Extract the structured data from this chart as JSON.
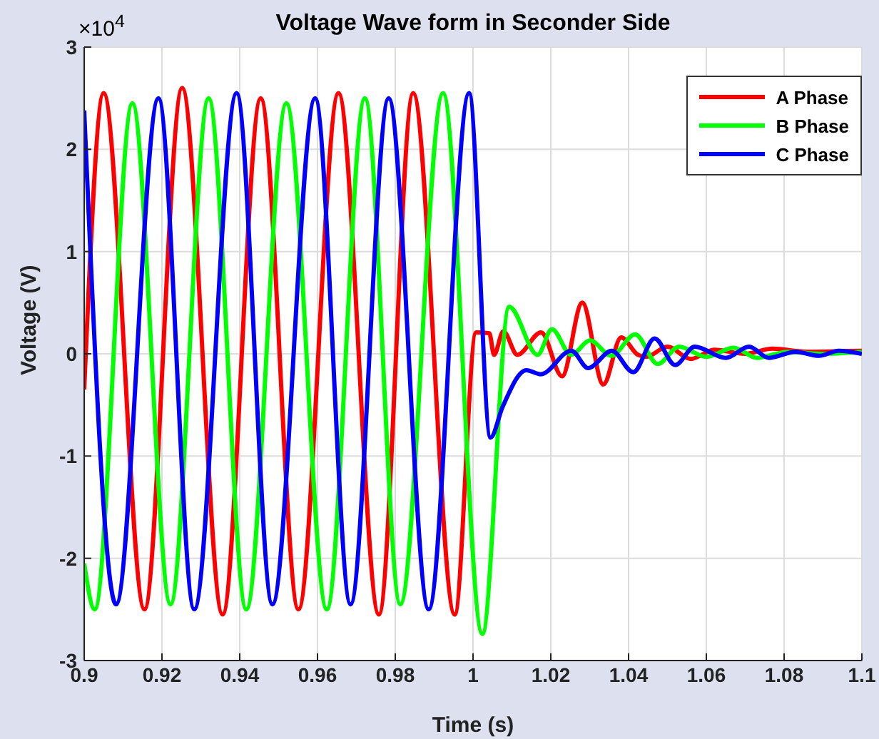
{
  "chart_data": {
    "type": "line",
    "title": "Voltage Wave form in Seconder Side",
    "xlabel": "Time (s)",
    "ylabel": "Voltage (V)",
    "annotations": [
      "×10$^{4}$"
    ],
    "xlim": [
      0.9,
      1.1
    ],
    "xticks": [
      0.9,
      0.92,
      0.94,
      0.96,
      0.98,
      1,
      1.02,
      1.04,
      1.06,
      1.08,
      1.1
    ],
    "ylim": [
      -3,
      3
    ],
    "yticks": [
      -3,
      -2,
      -1,
      0,
      1,
      2,
      3
    ],
    "grid": true,
    "legend": "top right",
    "marker": "none",
    "line_style": "solid",
    "series": [
      {
        "name": "A Phase",
        "color": "#ff0000",
        "x": [
          0.9,
          0.905,
          0.9155,
          0.9252,
          0.9356,
          0.9454,
          0.9551,
          0.9654,
          0.9758,
          0.9846,
          0.9953,
          1.0008,
          1.0042,
          1.0054,
          1.0078,
          1.0114,
          1.0175,
          1.0229,
          1.0281,
          1.0335,
          1.0381,
          1.0424,
          1.0445,
          1.05,
          1.056,
          1.062,
          1.07,
          1.077,
          1.086,
          1.1
        ],
        "values": [
          -0.35,
          2.55,
          -2.5,
          2.6,
          -2.55,
          2.5,
          -2.5,
          2.55,
          -2.55,
          2.55,
          -2.55,
          0.21,
          0.2,
          -0.01,
          0.22,
          -0.01,
          0.21,
          -0.22,
          0.5,
          -0.3,
          0.16,
          -0.01,
          -0.03,
          0.07,
          -0.05,
          0.04,
          0,
          0.05,
          0.02,
          0.03
        ]
      },
      {
        "name": "B Phase",
        "color": "#00ff00",
        "x": [
          0.9,
          0.9027,
          0.9124,
          0.9222,
          0.932,
          0.9417,
          0.952,
          0.9624,
          0.9722,
          0.9813,
          0.9923,
          1.0024,
          1.0093,
          1.0166,
          1.0203,
          1.0252,
          1.0301,
          1.0356,
          1.0417,
          1.0475,
          1.053,
          1.06,
          1.067,
          1.073,
          1.081,
          1.089,
          1.1
        ],
        "values": [
          -2.05,
          -2.5,
          2.45,
          -2.45,
          2.5,
          -2.5,
          2.45,
          -2.5,
          2.5,
          -2.45,
          2.55,
          -2.74,
          0.46,
          -0.01,
          0.24,
          -0.01,
          0.13,
          -0.02,
          0.19,
          -0.1,
          0.07,
          -0.03,
          0.06,
          -0.04,
          0.02,
          0,
          0.02
        ]
      },
      {
        "name": "C Phase",
        "color": "#0000ff",
        "x": [
          0.9,
          0.9082,
          0.9191,
          0.9283,
          0.9392,
          0.9484,
          0.9594,
          0.9685,
          0.9783,
          0.9886,
          0.999,
          1.0045,
          1.0076,
          1.0137,
          1.0174,
          1.0253,
          1.0296,
          1.0357,
          1.0412,
          1.0467,
          1.052,
          1.057,
          1.065,
          1.071,
          1.076,
          1.083,
          1.089,
          1.094,
          1.1
        ],
        "values": [
          2.38,
          -2.45,
          2.5,
          -2.5,
          2.55,
          -2.45,
          2.5,
          -2.45,
          2.5,
          -2.5,
          2.55,
          -0.82,
          -0.52,
          -0.16,
          -0.2,
          0.03,
          -0.14,
          0.03,
          -0.18,
          0.15,
          -0.11,
          0.07,
          -0.04,
          0.07,
          -0.04,
          0.02,
          -0.02,
          0.03,
          0
        ]
      }
    ]
  }
}
